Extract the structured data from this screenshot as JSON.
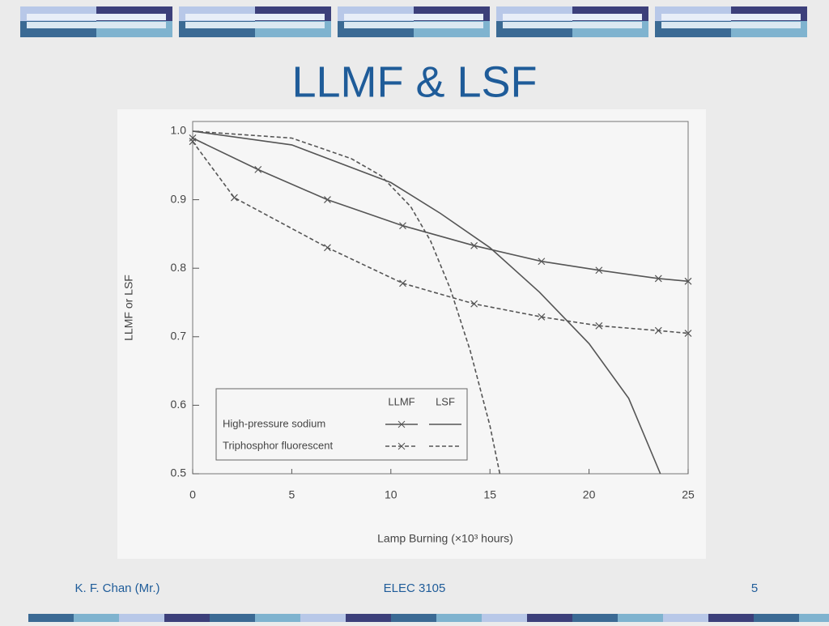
{
  "slide": {
    "title": "LLMF & LSF",
    "footer_left": "K. F. Chan (Mr.)",
    "footer_center": "ELEC 3105",
    "page_number": "5"
  },
  "chart_data": {
    "type": "line",
    "xlabel": "Lamp Burning (×10³ hours)",
    "ylabel": "LLMF or LSF",
    "xlim": [
      0,
      25
    ],
    "ylim": [
      0.5,
      1.0
    ],
    "xticks": [
      0,
      5,
      10,
      15,
      20,
      25
    ],
    "yticks": [
      0.5,
      0.6,
      0.7,
      0.8,
      0.9,
      {
        "value": 1,
        "label": "1.0"
      }
    ],
    "series": [
      {
        "name": "High-pressure sodium",
        "measure": "LLMF",
        "color": "#555555",
        "dashed": false,
        "markers": true,
        "x": [
          0,
          3.3,
          6.8,
          10.6,
          14.2,
          17.6,
          20.5,
          23.5,
          25
        ],
        "values": [
          0.99,
          0.944,
          0.9,
          0.862,
          0.833,
          0.81,
          0.797,
          0.785,
          0.781
        ]
      },
      {
        "name": "High-pressure sodium",
        "measure": "LSF",
        "color": "#555555",
        "dashed": false,
        "markers": false,
        "x": [
          0,
          5,
          10,
          12.5,
          15,
          17.5,
          20,
          22,
          23.6
        ],
        "values": [
          1.0,
          0.98,
          0.925,
          0.88,
          0.83,
          0.765,
          0.69,
          0.61,
          0.5
        ]
      },
      {
        "name": "Triphosphor fluorescent",
        "measure": "LLMF",
        "color": "#555555",
        "dashed": true,
        "markers": true,
        "x": [
          0,
          2.1,
          6.8,
          10.6,
          14.2,
          17.6,
          20.5,
          23.5,
          25
        ],
        "values": [
          0.985,
          0.903,
          0.83,
          0.778,
          0.748,
          0.729,
          0.716,
          0.709,
          0.705
        ]
      },
      {
        "name": "Triphosphor fluorescent",
        "measure": "LSF",
        "color": "#555555",
        "dashed": true,
        "markers": false,
        "x": [
          0,
          5,
          8,
          9.5,
          11,
          12,
          13,
          14,
          15,
          15.5
        ],
        "values": [
          1.0,
          0.99,
          0.96,
          0.935,
          0.89,
          0.84,
          0.77,
          0.68,
          0.57,
          0.5
        ]
      }
    ]
  }
}
